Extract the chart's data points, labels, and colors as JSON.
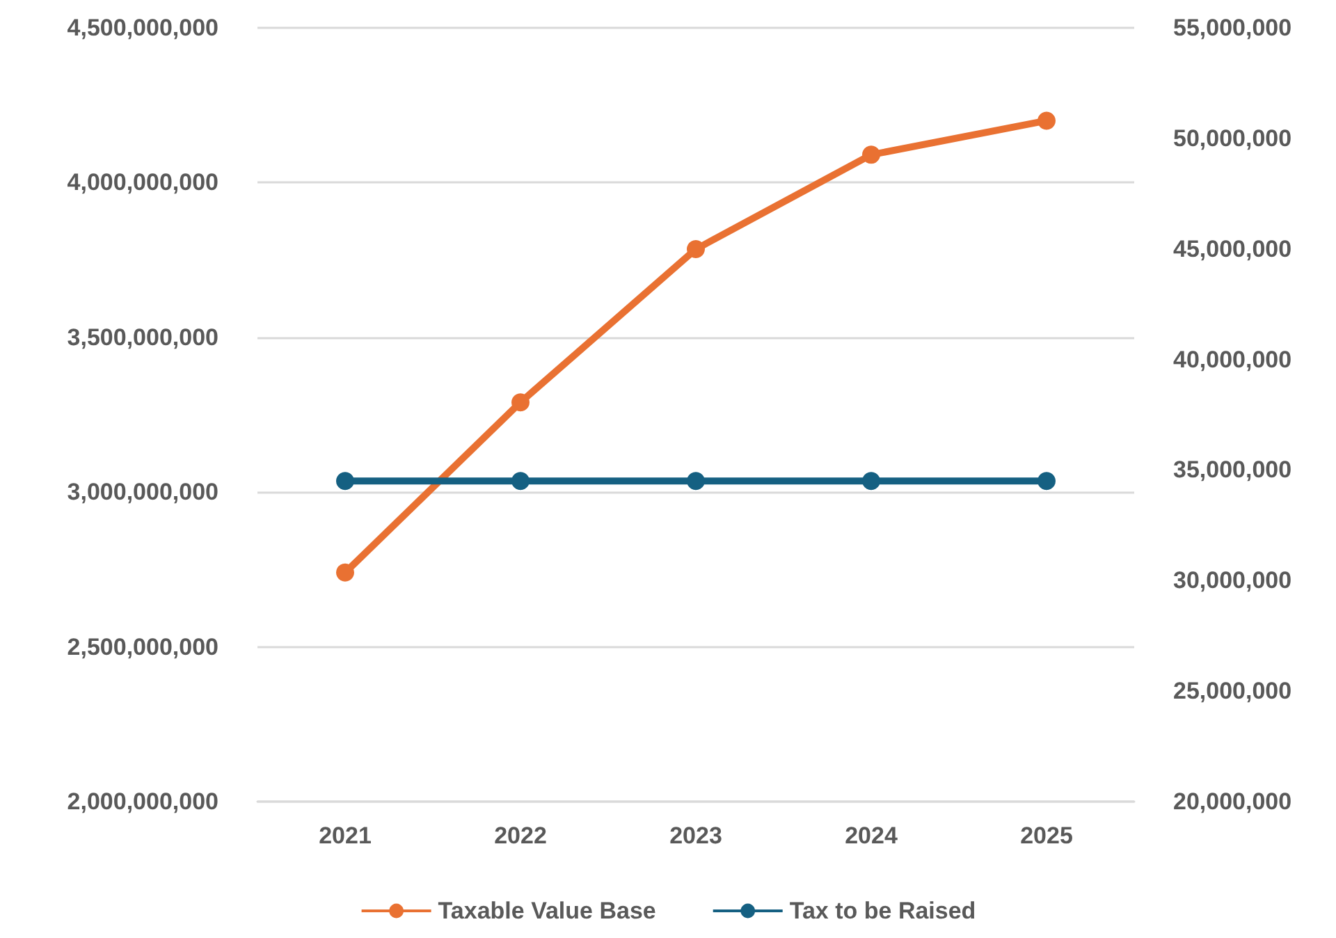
{
  "chart_data": {
    "type": "line",
    "categories": [
      "2021",
      "2022",
      "2023",
      "2024",
      "2025"
    ],
    "series": [
      {
        "name": "Taxable Value Base",
        "color": "#e97132",
        "values": [
          2740000000,
          3290000000,
          3785000000,
          4090000000,
          4200000000
        ]
      },
      {
        "name": "Tax to be Raised",
        "color": "#156082",
        "axis": "y2",
        "values": [
          34500000,
          34500000,
          34500000,
          34500000,
          34500000
        ]
      }
    ],
    "ylim": [
      2000000000,
      4500000000
    ],
    "yticks": [
      {
        "value": 2000000000,
        "label": "2,000,000,000"
      },
      {
        "value": 2500000000,
        "label": "2,500,000,000"
      },
      {
        "value": 3000000000,
        "label": "3,000,000,000"
      },
      {
        "value": 3500000000,
        "label": "3,500,000,000"
      },
      {
        "value": 4000000000,
        "label": "4,000,000,000"
      },
      {
        "value": 4500000000,
        "label": "4,500,000,000"
      }
    ],
    "y2lim": [
      20000000,
      55000000
    ],
    "y2ticks": [
      {
        "value": 20000000,
        "label": "20,000,000"
      },
      {
        "value": 25000000,
        "label": "25,000,000"
      },
      {
        "value": 30000000,
        "label": "30,000,000"
      },
      {
        "value": 35000000,
        "label": "35,000,000"
      },
      {
        "value": 40000000,
        "label": "40,000,000"
      },
      {
        "value": 45000000,
        "label": "45,000,000"
      },
      {
        "value": 50000000,
        "label": "50,000,000"
      },
      {
        "value": 55000000,
        "label": "55,000,000"
      }
    ],
    "grid": "y",
    "legend": "bottom",
    "marker": "circle",
    "line_style": "solid"
  }
}
